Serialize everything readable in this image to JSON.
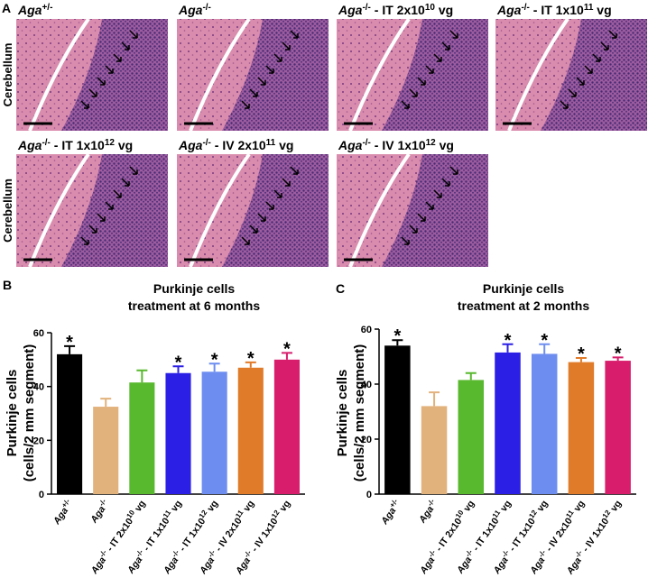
{
  "panel_a": {
    "label": "A",
    "row_labels": [
      "Cerebellum",
      "Cerebellum"
    ],
    "images": [
      {
        "title": [
          "Aga",
          "+/-"
        ]
      },
      {
        "title": [
          "Aga",
          "-/-"
        ]
      },
      {
        "title": [
          "Aga",
          "-/-",
          " - IT 2x10",
          "10",
          " vg"
        ]
      },
      {
        "title": [
          "Aga",
          "-/-",
          " - IT 1x10",
          "11",
          " vg"
        ]
      },
      {
        "title": [
          "Aga",
          "-/-",
          " - IT 1x10",
          "12",
          " vg"
        ]
      },
      {
        "title": [
          "Aga",
          "-/-",
          " - IV 2x10",
          "11",
          " vg"
        ]
      },
      {
        "title": [
          "Aga",
          "-/-",
          " - IV 1x10",
          "12",
          " vg"
        ]
      }
    ]
  },
  "chart_data": [
    {
      "type": "bar",
      "panel": "B",
      "title": [
        "Purkinje cells",
        "treatment at 6 months"
      ],
      "y_label": [
        "Purkinje cells",
        "(cells/2 mm segment)"
      ],
      "categories": [
        [
          "Aga",
          "+/-"
        ],
        [
          "Aga",
          "-/-"
        ],
        [
          "Aga",
          "-/-",
          " - IT 2x10",
          "10",
          " vg"
        ],
        [
          "Aga",
          "-/-",
          " - IT 1x10",
          "11",
          " vg"
        ],
        [
          "Aga",
          "-/-",
          " - IT 1x10",
          "12",
          " vg"
        ],
        [
          "Aga",
          "-/-",
          " - IV 2x10",
          "11",
          " vg"
        ],
        [
          "Aga",
          "-/-",
          " - IV 1x10",
          "12",
          " vg"
        ]
      ],
      "values": [
        52,
        32.5,
        41.5,
        45,
        45.5,
        47,
        50
      ],
      "errors": [
        3,
        3,
        4.5,
        2.5,
        3,
        2,
        2.5
      ],
      "significance": [
        "*",
        null,
        null,
        "*",
        "*",
        "*",
        "*"
      ],
      "colors": [
        "#000000",
        "#e2b27c",
        "#58b82e",
        "#2b1fe6",
        "#6d8ef0",
        "#e07b2a",
        "#d81d6c"
      ],
      "ylim": [
        0,
        60
      ],
      "yticks": [
        0,
        20,
        40,
        60
      ]
    },
    {
      "type": "bar",
      "panel": "C",
      "title": [
        "Purkinje cells",
        "treatment at 2 months"
      ],
      "y_label": [
        "Purkinje cells",
        "(cells/2 mm segment)"
      ],
      "categories": [
        [
          "Aga",
          "+/-"
        ],
        [
          "Aga",
          "-/-"
        ],
        [
          "Aga",
          "-/-",
          " - IT 2x10",
          "10",
          " vg"
        ],
        [
          "Aga",
          "-/-",
          " - IT 1x10",
          "11",
          " vg"
        ],
        [
          "Aga",
          "-/-",
          " - IT 1x10",
          "12",
          " vg"
        ],
        [
          "Aga",
          "-/-",
          " - IV 2x10",
          "11",
          " vg"
        ],
        [
          "Aga",
          "-/-",
          " - IV 1x10",
          "12",
          " vg"
        ]
      ],
      "values": [
        54,
        32,
        41.5,
        51.5,
        51,
        48,
        48.5
      ],
      "errors": [
        2,
        5,
        2.5,
        3,
        3.5,
        1.5,
        1.2
      ],
      "significance": [
        "*",
        null,
        null,
        "*",
        "*",
        "*",
        "*"
      ],
      "colors": [
        "#000000",
        "#e2b27c",
        "#58b82e",
        "#2b1fe6",
        "#6d8ef0",
        "#e07b2a",
        "#d81d6c"
      ],
      "ylim": [
        0,
        60
      ],
      "yticks": [
        0,
        20,
        40,
        60
      ]
    }
  ]
}
